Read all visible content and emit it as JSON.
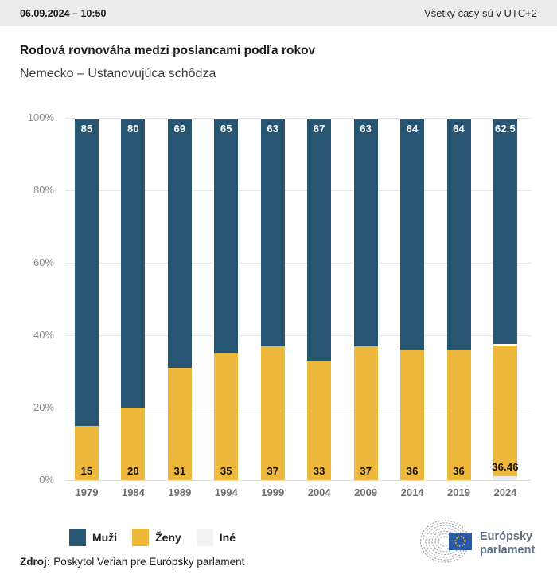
{
  "header": {
    "timestamp": "06.09.2024 – 10:50",
    "timezone_note": "Všetky časy sú v UTC+2"
  },
  "title": "Rodová rovnováha medzi poslancami podľa rokov",
  "subtitle": "Nemecko – Ustanovujúca schôdza",
  "chart_data": {
    "type": "bar",
    "stacked": true,
    "title": "Rodová rovnováha medzi poslancami podľa rokov",
    "subtitle": "Nemecko – Ustanovujúca schôdza",
    "xlabel": "",
    "ylabel": "",
    "ylim": [
      0,
      100
    ],
    "grid": true,
    "legend_position": "bottom-left",
    "y_ticks": [
      "100%",
      "80%",
      "60%",
      "40%",
      "20%",
      "0%"
    ],
    "categories": [
      "1979",
      "1984",
      "1989",
      "1994",
      "1999",
      "2004",
      "2009",
      "2014",
      "2019",
      "2024"
    ],
    "series": [
      {
        "name": "Muži",
        "color": "#275572",
        "labelled": true,
        "values": [
          85,
          80,
          69,
          65,
          63,
          67,
          63,
          64,
          64,
          62.5
        ]
      },
      {
        "name": "Ženy",
        "color": "#eeb83c",
        "labelled": true,
        "values": [
          15,
          20,
          31,
          35,
          37,
          33,
          37,
          36,
          36,
          36.46
        ]
      },
      {
        "name": "Iné",
        "color": "#e9edf2",
        "labelled": false,
        "values": [
          0,
          0,
          0,
          0,
          0,
          0,
          0,
          0,
          0,
          1.04
        ]
      }
    ]
  },
  "legend": {
    "items": [
      {
        "label": "Muži",
        "color": "#275572"
      },
      {
        "label": "Ženy",
        "color": "#eeb83c"
      },
      {
        "label": "Iné",
        "color": "#f0f1f1"
      }
    ]
  },
  "source": {
    "label": "Zdroj:",
    "text": "Poskytol Verian pre Európsky parlament"
  },
  "logo": {
    "line1": "Európsky",
    "line2": "parlament",
    "flag_color": "#2b59a6",
    "stars_color": "#f3cf1c",
    "arcs_color": "#949b9f"
  }
}
